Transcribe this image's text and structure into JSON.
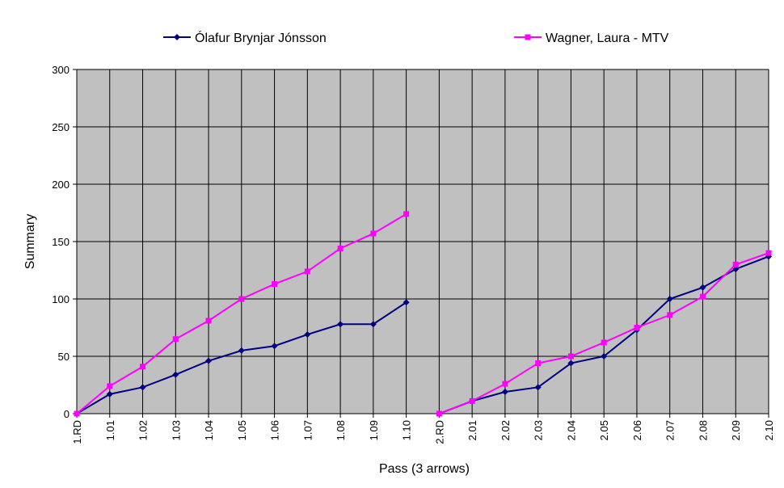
{
  "chart_data": {
    "type": "line",
    "categories": [
      [
        "1.RD",
        "1.01",
        "1.02",
        "1.03",
        "1.04",
        "1.05",
        "1.06",
        "1.07",
        "1.08",
        "1.09",
        "1.10"
      ],
      [
        "2.RD",
        "2.01",
        "2.02",
        "2.03",
        "2.04",
        "2.05",
        "2.06",
        "2.07",
        "2.08",
        "2.09",
        "2.10"
      ]
    ],
    "series": [
      {
        "name": "Ólafur Brynjar Jónsson",
        "color": "#000080",
        "marker": "diamond",
        "values": [
          [
            0,
            17,
            23,
            34,
            46,
            55,
            59,
            69,
            78,
            78,
            97
          ],
          [
            0,
            11,
            19,
            23,
            44,
            50,
            73,
            100,
            110,
            126,
            137
          ]
        ]
      },
      {
        "name": "Wagner, Laura - MTV",
        "color": "#ff00ff",
        "marker": "square",
        "values": [
          [
            0,
            24,
            41,
            65,
            81,
            100,
            113,
            124,
            144,
            157,
            174
          ],
          [
            0,
            11,
            26,
            44,
            50,
            62,
            75,
            86,
            102,
            130,
            140
          ]
        ]
      }
    ],
    "ylim": [
      0,
      300
    ],
    "yticks": [
      0,
      50,
      100,
      150,
      200,
      250,
      300
    ],
    "xlabel": "Pass (3 arrows)",
    "ylabel": "Summary",
    "grid": true,
    "background": "#c0c0c0"
  }
}
